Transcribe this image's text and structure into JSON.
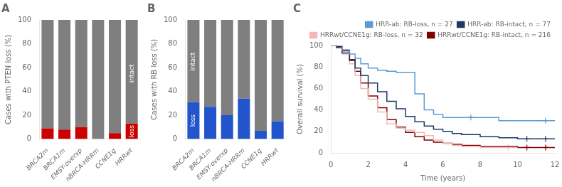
{
  "chart_data": [
    {
      "type": "bar",
      "title": "A",
      "stacked": true,
      "grid": false,
      "categories": [
        "BRCA2m",
        "BRCA1m",
        "EMSY-overxp",
        "nBRCA-HRRm",
        "CCNE1g",
        "HRRwt"
      ],
      "series": [
        {
          "color": "#cc0000",
          "values": [
            9,
            8,
            10,
            0,
            5,
            13
          ]
        },
        {
          "color": "#7f7f7f",
          "values": [
            91,
            92,
            90,
            100,
            95,
            87
          ]
        }
      ],
      "ylabel": "Cases with PTEN loss (%)",
      "ylim": [
        0,
        100
      ],
      "yticks": [
        0,
        20,
        40,
        60,
        80,
        100
      ],
      "annotations": [
        {
          "text": "intact",
          "x": "HRRwt",
          "y": 55,
          "color": "#ffffff"
        },
        {
          "text": "loss",
          "x": "HRRwt",
          "y": 6.5,
          "color": "#ffffff"
        }
      ]
    },
    {
      "type": "bar",
      "title": "B",
      "stacked": true,
      "grid": false,
      "categories": [
        "BRCA2m",
        "BRCA1m",
        "EMSY-overxp",
        "nBRCA-HRRm",
        "CCNE1g",
        "HRRwt"
      ],
      "series": [
        {
          "color": "#2255cc",
          "values": [
            31,
            27,
            20,
            34,
            7,
            15
          ]
        },
        {
          "color": "#7f7f7f",
          "values": [
            69,
            73,
            80,
            66,
            93,
            85
          ]
        }
      ],
      "ylabel": "Cases with RB loss (%)",
      "ylim": [
        0,
        100
      ],
      "yticks": [
        0,
        20,
        40,
        60,
        80,
        100
      ],
      "annotations": [
        {
          "text": "intact",
          "x": "BRCA2m",
          "y": 65,
          "color": "#ffffff"
        },
        {
          "text": "loss",
          "x": "BRCA2m",
          "y": 15.5,
          "color": "#ffffff"
        }
      ]
    },
    {
      "type": "step",
      "title": "C",
      "grid": false,
      "legend": "upper right",
      "xlabel": "Time (years)",
      "ylabel": "Overall survival (%)",
      "xlim": [
        0,
        12
      ],
      "xticks": [
        0,
        2,
        4,
        6,
        8,
        10,
        12
      ],
      "ylim": [
        0,
        100
      ],
      "yticks": [
        0,
        20,
        40,
        60,
        80,
        100
      ],
      "series": [
        {
          "name": "HRR-ab: RB-loss, n = 27",
          "color": "#5b9bd5",
          "x": [
            0,
            0.3,
            0.6,
            1.0,
            1.3,
            1.6,
            2.0,
            2.5,
            3.0,
            3.5,
            4.0,
            4.5,
            5.0,
            5.5,
            6.0,
            7.0,
            8.0,
            9.0,
            10.0,
            11.0,
            12.0
          ],
          "values": [
            100,
            100,
            96,
            92,
            88,
            83,
            79,
            77,
            76,
            75,
            75,
            55,
            40,
            36,
            33,
            33,
            33,
            30,
            30,
            30,
            30
          ],
          "censors": {
            "x": [
              7.5,
              11.5
            ],
            "y": [
              33,
              30
            ]
          }
        },
        {
          "name": "HRR-ab: RB-intact, n = 77",
          "color": "#1f3864",
          "x": [
            0,
            0.3,
            0.6,
            1.0,
            1.3,
            1.6,
            2.0,
            2.5,
            3.0,
            3.5,
            4.0,
            4.5,
            5.0,
            5.5,
            6.0,
            6.5,
            7.0,
            8.0,
            9.0,
            10.0,
            11.0,
            12.0
          ],
          "values": [
            100,
            98,
            93,
            86,
            79,
            72,
            65,
            57,
            48,
            41,
            34,
            29,
            25,
            22,
            20,
            18,
            17,
            15,
            14,
            13,
            13,
            13
          ],
          "censors": {
            "x": [
              10.5,
              11.5
            ],
            "y": [
              13,
              13
            ]
          }
        },
        {
          "name": "HRRwt/CCNE1g: RB-loss, n = 32",
          "color": "#f4b8b8",
          "x": [
            0,
            0.3,
            0.6,
            1.0,
            1.3,
            1.6,
            2.0,
            2.5,
            3.0,
            3.5,
            4.0,
            4.5,
            5.0,
            5.5,
            6.0,
            6.5,
            7.0,
            8.0,
            9.0,
            10.0
          ],
          "values": [
            100,
            98,
            92,
            83,
            72,
            60,
            50,
            38,
            27,
            23,
            21,
            19,
            16,
            12,
            9,
            7,
            6,
            5,
            5,
            5
          ],
          "censors": {
            "x": [
              9.5
            ],
            "y": [
              5
            ]
          }
        },
        {
          "name": "HRRwt/CCNE1g: RB-intact, n = 216",
          "color": "#7f0000",
          "x": [
            0,
            0.3,
            0.6,
            1.0,
            1.3,
            1.6,
            2.0,
            2.5,
            3.0,
            3.5,
            4.0,
            4.5,
            5.0,
            5.5,
            6.0,
            6.5,
            7.0,
            8.0,
            9.0,
            10.0,
            11.0,
            12.0
          ],
          "values": [
            100,
            99,
            95,
            87,
            76,
            65,
            53,
            42,
            31,
            24,
            19,
            15,
            12,
            10,
            9,
            8,
            7,
            6,
            6,
            5,
            5,
            5
          ],
          "censors": {
            "x": [
              10.5,
              11.5
            ],
            "y": [
              5,
              5
            ]
          }
        }
      ]
    }
  ]
}
